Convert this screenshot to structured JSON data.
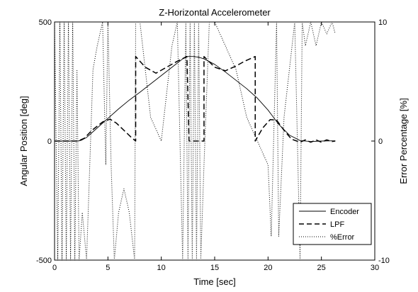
{
  "chart_data": {
    "type": "line",
    "title": "Z-Horizontal Accelerometer",
    "xlabel": "Time [sec]",
    "ylabel": "Angular Position [deg]",
    "y2label": "Error Percentage [%]",
    "xlim": [
      0,
      30
    ],
    "ylim": [
      -500,
      500
    ],
    "y2lim": [
      -10,
      10
    ],
    "xticks": [
      0,
      5,
      10,
      15,
      20,
      25,
      30
    ],
    "yticks": [
      -500,
      0,
      500
    ],
    "y2ticks": [
      -10,
      0,
      10
    ],
    "grid": false,
    "legend_position": "bottom-right",
    "legend": [
      {
        "label": "Encoder",
        "style": "solid"
      },
      {
        "label": "LPF",
        "style": "dashed"
      },
      {
        "label": "%Error",
        "style": "dotted"
      }
    ],
    "series": [
      {
        "name": "Encoder",
        "style": "solid",
        "axis": "left",
        "x": [
          0,
          2.2,
          2.5,
          3,
          3.5,
          4,
          5,
          6,
          7,
          8,
          9,
          10,
          11,
          12,
          12.5,
          13,
          13.5,
          14,
          15,
          16,
          17,
          18,
          19,
          20,
          21,
          22,
          23,
          24,
          25,
          26,
          26.3
        ],
        "y": [
          0,
          0,
          3,
          15,
          35,
          55,
          95,
          135,
          172,
          205,
          240,
          275,
          310,
          345,
          355,
          355,
          352,
          345,
          322,
          290,
          255,
          220,
          180,
          130,
          70,
          25,
          2,
          -2,
          0,
          1,
          1
        ]
      },
      {
        "name": "LPF",
        "style": "dashed",
        "axis": "left",
        "x": [
          0,
          2.2,
          2.8,
          3.5,
          4.5,
          5.2,
          5.8,
          6.5,
          7.2,
          7.6,
          7.6,
          8.5,
          9.5,
          10.5,
          11.5,
          12.4,
          12.6,
          13.5,
          13.8,
          14.0,
          14.0,
          15.0,
          16.0,
          17.0,
          17.8,
          18.8,
          18.8,
          19.5,
          20.2,
          20.8,
          21.5,
          22.2,
          23,
          23.5,
          24,
          24.5,
          25,
          25.5,
          26,
          26.3
        ],
        "y": [
          0,
          0,
          12,
          45,
          80,
          92,
          75,
          45,
          15,
          0,
          355,
          310,
          285,
          310,
          335,
          355,
          0,
          0,
          0,
          0,
          355,
          310,
          295,
          315,
          335,
          355,
          0,
          55,
          90,
          88,
          45,
          8,
          -5,
          5,
          -5,
          5,
          -5,
          5,
          -2,
          0
        ]
      },
      {
        "name": "%Error",
        "style": "dotted",
        "axis": "right",
        "x": [
          0.0,
          0.3,
          0.5,
          0.7,
          0.9,
          1.1,
          1.3,
          1.5,
          1.7,
          1.9,
          2.1,
          2.3,
          2.6,
          3.0,
          3.3,
          3.6,
          4.0,
          4.5,
          4.8,
          5.0,
          5.3,
          5.6,
          6.0,
          6.5,
          7.0,
          7.5,
          7.6,
          8.0,
          9.0,
          10.0,
          10.5,
          11.0,
          11.5,
          12.0,
          12.3,
          12.5,
          12.7,
          12.9,
          13.1,
          13.3,
          13.5,
          13.7,
          14.0,
          14.5,
          15.0,
          16.0,
          17.0,
          17.5,
          18.0,
          19.0,
          20.0,
          20.3,
          20.8,
          21.0,
          21.5,
          22.0,
          22.5,
          23.0,
          23.2,
          23.5,
          24.0,
          24.5,
          25.0,
          25.5,
          26.0,
          26.3
        ],
        "y": [
          10,
          -10,
          10,
          -10,
          10,
          -10,
          10,
          -10,
          10,
          -10,
          6,
          -10,
          -6,
          -10,
          -2,
          6,
          8,
          10,
          -2,
          10,
          -2,
          -10,
          -6,
          -4,
          -6,
          -10,
          10,
          10,
          2,
          0,
          4,
          8,
          10,
          -10,
          10,
          -10,
          10,
          -10,
          10,
          -10,
          10,
          -10,
          -2,
          10,
          10,
          8,
          6,
          4,
          2,
          0,
          -2,
          -8,
          10,
          -8,
          2,
          6,
          10,
          -10,
          10,
          8,
          10,
          8,
          10,
          9,
          10,
          9
        ]
      }
    ]
  }
}
